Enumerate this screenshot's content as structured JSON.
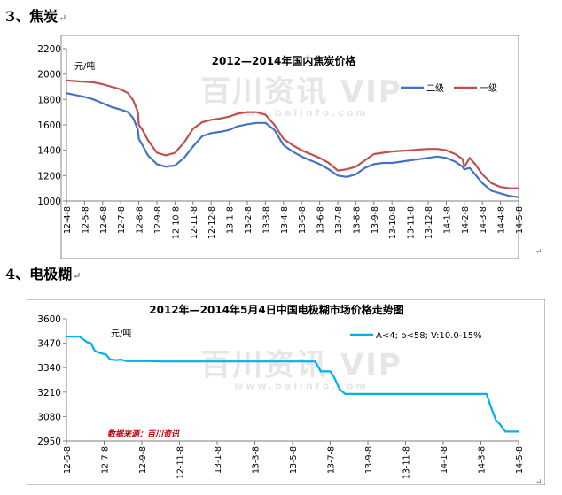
{
  "sections": [
    {
      "number": "3、",
      "title": "焦炭"
    },
    {
      "number": "4、",
      "title": "电极糊"
    }
  ],
  "return_mark": "↵",
  "chart_data": [
    {
      "type": "line",
      "title": "2012—2014年国内焦炭价格",
      "unit_label": "元/吨",
      "ylim": [
        1000,
        2200
      ],
      "yticks": [
        1000,
        1200,
        1400,
        1600,
        1800,
        2000,
        2200
      ],
      "categories": [
        "12-4-8",
        "12-5-8",
        "12-6-8",
        "12-7-8",
        "12-8-8",
        "12-9-8",
        "12-10-8",
        "12-11-8",
        "12-12-8",
        "13-1-8",
        "13-2-8",
        "13-3-8",
        "13-4-8",
        "13-5-8",
        "13-6-8",
        "13-7-8",
        "13-8-8",
        "13-9-8",
        "13-10-8",
        "13-11-8",
        "13-12-8",
        "14-1-8",
        "14-2-8",
        "14-3-8",
        "14-4-8",
        "14-5-8"
      ],
      "legend_position": "top-right",
      "grid": false,
      "watermark": "百川资讯 VIP",
      "watermark_url": "www.baiinfo.com",
      "series": [
        {
          "name": "二级",
          "color": "#4472C4",
          "points": [
            [
              0,
              1850
            ],
            [
              0.5,
              1835
            ],
            [
              1,
              1820
            ],
            [
              1.5,
              1800
            ],
            [
              2,
              1770
            ],
            [
              2.5,
              1740
            ],
            [
              3,
              1720
            ],
            [
              3.4,
              1700
            ],
            [
              3.7,
              1650
            ],
            [
              3.95,
              1560
            ],
            [
              4,
              1490
            ],
            [
              4.2,
              1440
            ],
            [
              4.5,
              1360
            ],
            [
              5,
              1290
            ],
            [
              5.5,
              1270
            ],
            [
              6,
              1280
            ],
            [
              6.5,
              1340
            ],
            [
              7,
              1430
            ],
            [
              7.5,
              1510
            ],
            [
              8,
              1535
            ],
            [
              8.5,
              1545
            ],
            [
              9,
              1560
            ],
            [
              9.5,
              1590
            ],
            [
              10,
              1605
            ],
            [
              10.5,
              1615
            ],
            [
              11,
              1615
            ],
            [
              11.5,
              1560
            ],
            [
              12,
              1440
            ],
            [
              12.5,
              1390
            ],
            [
              13,
              1350
            ],
            [
              13.5,
              1320
            ],
            [
              14,
              1290
            ],
            [
              14.5,
              1250
            ],
            [
              15,
              1200
            ],
            [
              15.5,
              1190
            ],
            [
              16,
              1210
            ],
            [
              16.5,
              1260
            ],
            [
              17,
              1290
            ],
            [
              17.5,
              1300
            ],
            [
              18,
              1300
            ],
            [
              18.5,
              1310
            ],
            [
              19,
              1320
            ],
            [
              19.5,
              1330
            ],
            [
              20,
              1340
            ],
            [
              20.5,
              1350
            ],
            [
              21,
              1340
            ],
            [
              21.5,
              1310
            ],
            [
              21.9,
              1270
            ],
            [
              22,
              1250
            ],
            [
              22.3,
              1260
            ],
            [
              22.6,
              1210
            ],
            [
              23,
              1140
            ],
            [
              23.5,
              1080
            ],
            [
              24,
              1060
            ],
            [
              24.5,
              1040
            ],
            [
              25,
              1030
            ]
          ]
        },
        {
          "name": "一级",
          "color": "#C0504D",
          "points": [
            [
              0,
              1950
            ],
            [
              0.5,
              1945
            ],
            [
              1,
              1940
            ],
            [
              1.5,
              1935
            ],
            [
              2,
              1920
            ],
            [
              2.5,
              1900
            ],
            [
              3,
              1880
            ],
            [
              3.4,
              1850
            ],
            [
              3.7,
              1790
            ],
            [
              3.95,
              1700
            ],
            [
              4,
              1600
            ],
            [
              4.2,
              1560
            ],
            [
              4.5,
              1480
            ],
            [
              5,
              1380
            ],
            [
              5.5,
              1360
            ],
            [
              6,
              1380
            ],
            [
              6.5,
              1460
            ],
            [
              7,
              1570
            ],
            [
              7.5,
              1620
            ],
            [
              8,
              1640
            ],
            [
              8.5,
              1650
            ],
            [
              9,
              1665
            ],
            [
              9.5,
              1690
            ],
            [
              10,
              1700
            ],
            [
              10.5,
              1700
            ],
            [
              11,
              1680
            ],
            [
              11.5,
              1600
            ],
            [
              12,
              1490
            ],
            [
              12.5,
              1440
            ],
            [
              13,
              1400
            ],
            [
              13.5,
              1370
            ],
            [
              14,
              1340
            ],
            [
              14.5,
              1300
            ],
            [
              15,
              1240
            ],
            [
              15.5,
              1250
            ],
            [
              16,
              1270
            ],
            [
              16.5,
              1320
            ],
            [
              17,
              1370
            ],
            [
              17.5,
              1380
            ],
            [
              18,
              1390
            ],
            [
              18.5,
              1395
            ],
            [
              19,
              1400
            ],
            [
              19.5,
              1405
            ],
            [
              20,
              1410
            ],
            [
              20.5,
              1410
            ],
            [
              21,
              1400
            ],
            [
              21.5,
              1370
            ],
            [
              21.9,
              1330
            ],
            [
              22,
              1270
            ],
            [
              22.3,
              1340
            ],
            [
              22.6,
              1290
            ],
            [
              23,
              1210
            ],
            [
              23.5,
              1140
            ],
            [
              24,
              1110
            ],
            [
              24.5,
              1100
            ],
            [
              25,
              1100
            ]
          ]
        }
      ]
    },
    {
      "type": "line",
      "title": "2012年—2014年5月4日中国电极糊市场价格走势图",
      "unit_label": "元/吨",
      "ylim": [
        2950,
        3600
      ],
      "yticks": [
        2950,
        3080,
        3210,
        3340,
        3470,
        3600
      ],
      "categories": [
        "12-5-8",
        "12-7-8",
        "12-9-8",
        "12-11-8",
        "13-1-8",
        "13-3-8",
        "13-5-8",
        "13-7-8",
        "13-9-8",
        "13-11-8",
        "14-1-8",
        "14-3-8",
        "14-5-8"
      ],
      "legend_position": "top-right",
      "grid": false,
      "watermark": "百川资讯 VIP",
      "watermark_url": "www.baiinfo.com",
      "source_note": "数据来源：百川资讯",
      "series": [
        {
          "name": "A<4; ρ<58; V:10.0-15%",
          "color": "#00B0F0",
          "points": [
            [
              0,
              3505
            ],
            [
              0.35,
              3505
            ],
            [
              0.45,
              3490
            ],
            [
              0.55,
              3475
            ],
            [
              0.65,
              3470
            ],
            [
              0.75,
              3430
            ],
            [
              0.85,
              3420
            ],
            [
              0.95,
              3415
            ],
            [
              1.05,
              3410
            ],
            [
              1.15,
              3385
            ],
            [
              1.3,
              3380
            ],
            [
              1.45,
              3383
            ],
            [
              1.6,
              3375
            ],
            [
              1.8,
              3375
            ],
            [
              2,
              3375
            ],
            [
              2.2,
              3375
            ],
            [
              2.5,
              3373
            ],
            [
              3,
              3373
            ],
            [
              4,
              3373
            ],
            [
              5,
              3373
            ],
            [
              6,
              3373
            ],
            [
              6.6,
              3373
            ],
            [
              6.75,
              3320
            ],
            [
              7.0,
              3320
            ],
            [
              7.1,
              3290
            ],
            [
              7.25,
              3225
            ],
            [
              7.4,
              3200
            ],
            [
              8,
              3200
            ],
            [
              9,
              3200
            ],
            [
              10,
              3200
            ],
            [
              11,
              3200
            ],
            [
              11.15,
              3200
            ],
            [
              11.25,
              3140
            ],
            [
              11.4,
              3060
            ],
            [
              11.5,
              3040
            ],
            [
              11.65,
              3000
            ],
            [
              11.8,
              3000
            ],
            [
              12,
              3000
            ]
          ]
        }
      ]
    }
  ]
}
